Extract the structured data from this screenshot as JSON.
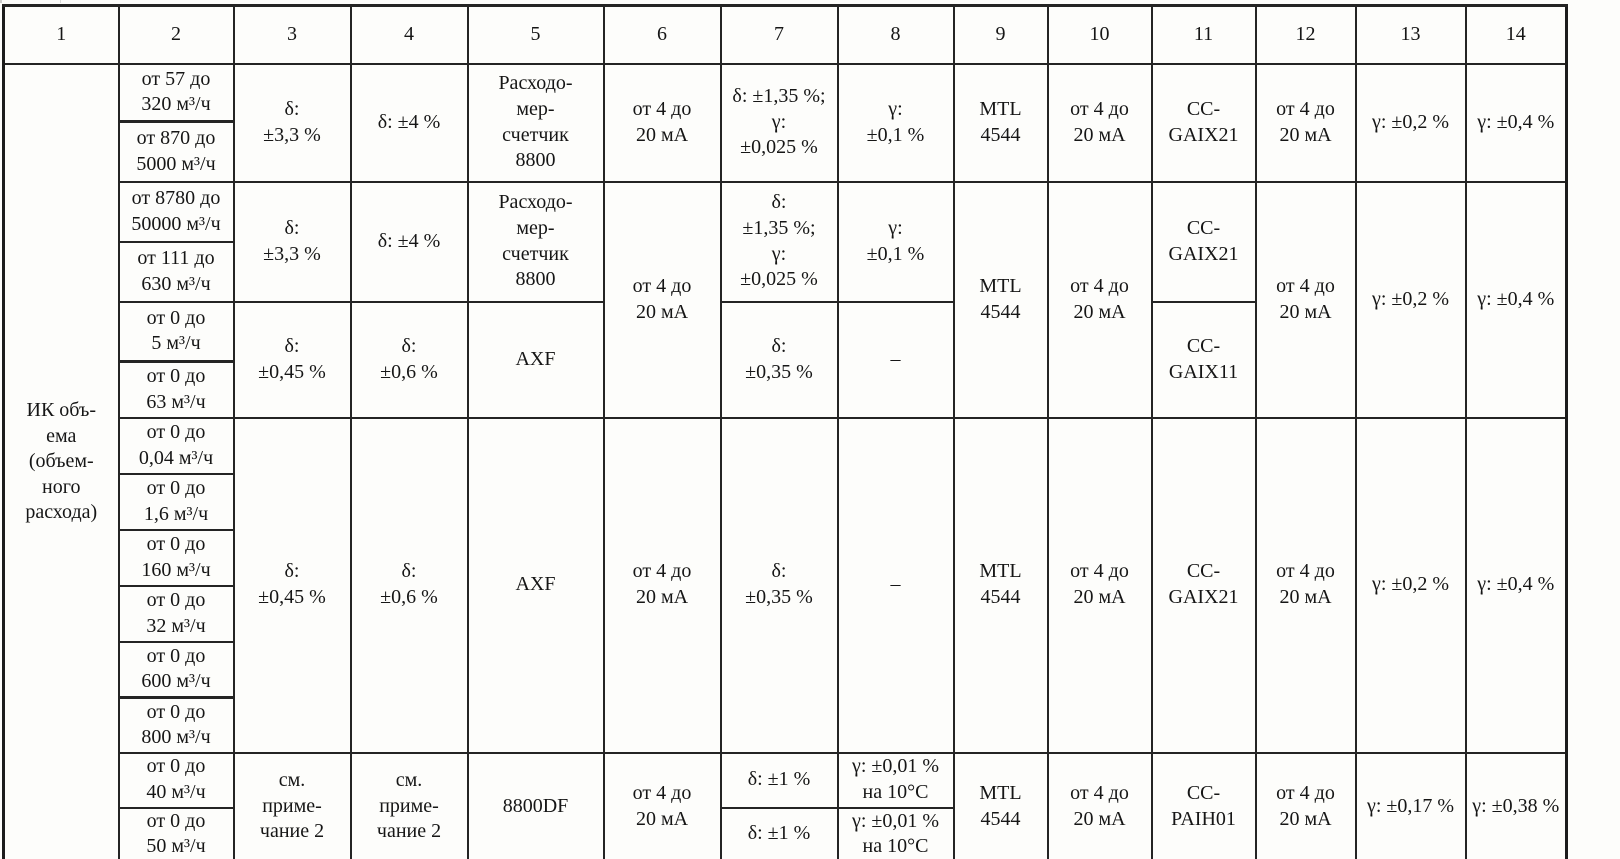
{
  "page": {
    "kind": "scanned-verification-table",
    "paper_color": "#fdfdfb",
    "line_color": "#242424",
    "text_color": "#161616"
  },
  "table": {
    "header": [
      "1",
      "2",
      "3",
      "4",
      "5",
      "6",
      "7",
      "8",
      "9",
      "10",
      "11",
      "12",
      "13",
      "14"
    ],
    "col1_label": "ИК объ-\nема\n(объем-\nного\nрасхода)",
    "rows": [
      {
        "cells": [
          {
            "c": 2,
            "t": "от 57 до\n320 м³/ч"
          },
          {
            "c": 3,
            "rs": 2,
            "t": "δ:\n±3,3 %"
          },
          {
            "c": 4,
            "rs": 2,
            "t": "δ: ±4 %"
          },
          {
            "c": 5,
            "rs": 2,
            "t": "Расходо-\nмер-\nсчетчик\n8800"
          },
          {
            "c": 6,
            "rs": 2,
            "t": "от 4 до\n20 мА"
          },
          {
            "c": 7,
            "rs": 2,
            "t": "δ: ±1,35 %;\nγ:\n±0,025 %"
          },
          {
            "c": 8,
            "rs": 2,
            "t": "γ:\n±0,1 %"
          },
          {
            "c": 9,
            "rs": 2,
            "t": "MTL\n4544"
          },
          {
            "c": 10,
            "rs": 2,
            "t": "от 4 до\n20 мА"
          },
          {
            "c": 11,
            "rs": 2,
            "t": "CC-\nGAIX21"
          },
          {
            "c": 12,
            "rs": 2,
            "t": "от 4 до\n20 мА"
          },
          {
            "c": 13,
            "rs": 2,
            "t": "γ: ±0,2 %"
          },
          {
            "c": 14,
            "rs": 2,
            "t": "γ: ±0,4 %"
          }
        ]
      },
      {
        "cells": [
          {
            "c": 2,
            "t": "от 870 до\n5000 м³/ч"
          }
        ]
      },
      {
        "cells": [
          {
            "c": 2,
            "t": "от 8780 до\n50000 м³/ч"
          },
          {
            "c": 3,
            "rs": 2,
            "t": "δ:\n±3,3 %"
          },
          {
            "c": 4,
            "rs": 2,
            "t": "δ: ±4 %"
          },
          {
            "c": 5,
            "rs": 2,
            "t": "Расходо-\nмер-\nсчетчик\n8800"
          },
          {
            "c": 6,
            "rs": 4,
            "t": "от 4 до\n20 мА"
          },
          {
            "c": 7,
            "rs": 2,
            "t": "δ:\n±1,35 %;\nγ:\n±0,025 %"
          },
          {
            "c": 8,
            "rs": 2,
            "t": "γ:\n±0,1 %"
          },
          {
            "c": 9,
            "rs": 4,
            "t": "MTL\n4544"
          },
          {
            "c": 10,
            "rs": 4,
            "t": "от 4 до\n20 мА"
          },
          {
            "c": 11,
            "rs": 2,
            "t": "CC-\nGAIX21"
          },
          {
            "c": 12,
            "rs": 4,
            "t": "от 4 до\n20 мА"
          },
          {
            "c": 13,
            "rs": 4,
            "t": "γ: ±0,2 %"
          },
          {
            "c": 14,
            "rs": 4,
            "t": "γ: ±0,4 %"
          }
        ]
      },
      {
        "cells": [
          {
            "c": 2,
            "t": "от 111 до\n630 м³/ч"
          }
        ]
      },
      {
        "cells": [
          {
            "c": 2,
            "t": "от 0 до\n5 м³/ч"
          },
          {
            "c": 3,
            "rs": 2,
            "t": "δ:\n±0,45 %"
          },
          {
            "c": 4,
            "rs": 2,
            "t": "δ:\n±0,6 %"
          },
          {
            "c": 5,
            "rs": 2,
            "t": "AXF"
          },
          {
            "c": 7,
            "rs": 2,
            "t": "δ:\n±0,35 %"
          },
          {
            "c": 8,
            "rs": 2,
            "t": "–"
          },
          {
            "c": 11,
            "rs": 2,
            "t": "CC-\nGAIX11"
          }
        ]
      },
      {
        "cells": [
          {
            "c": 2,
            "t": "от 0 до\n63 м³/ч"
          }
        ]
      },
      {
        "cells": [
          {
            "c": 2,
            "t": "от 0 до\n0,04 м³/ч"
          },
          {
            "c": 3,
            "rs": 6,
            "t": "δ:\n±0,45 %"
          },
          {
            "c": 4,
            "rs": 6,
            "t": "δ:\n±0,6 %"
          },
          {
            "c": 5,
            "rs": 6,
            "t": "AXF"
          },
          {
            "c": 6,
            "rs": 6,
            "t": "от 4 до\n20 мА"
          },
          {
            "c": 7,
            "rs": 6,
            "t": "δ:\n±0,35 %"
          },
          {
            "c": 8,
            "rs": 6,
            "t": "–"
          },
          {
            "c": 9,
            "rs": 6,
            "t": "MTL\n4544"
          },
          {
            "c": 10,
            "rs": 6,
            "t": "от 4 до\n20 мА"
          },
          {
            "c": 11,
            "rs": 6,
            "t": "CC-\nGAIX21"
          },
          {
            "c": 12,
            "rs": 6,
            "t": "от 4 до\n20 мА"
          },
          {
            "c": 13,
            "rs": 6,
            "t": "γ: ±0,2 %"
          },
          {
            "c": 14,
            "rs": 6,
            "t": "γ: ±0,4 %"
          }
        ]
      },
      {
        "cells": [
          {
            "c": 2,
            "t": "от 0 до\n1,6 м³/ч"
          }
        ]
      },
      {
        "cells": [
          {
            "c": 2,
            "t": "от 0 до\n160 м³/ч"
          }
        ]
      },
      {
        "cells": [
          {
            "c": 2,
            "t": "от 0 до\n32 м³/ч"
          }
        ]
      },
      {
        "cells": [
          {
            "c": 2,
            "t": "от 0 до\n600 м³/ч"
          }
        ]
      },
      {
        "cells": [
          {
            "c": 2,
            "t": "от 0 до\n800 м³/ч"
          }
        ]
      },
      {
        "cells": [
          {
            "c": 2,
            "t": "от 0 до\n40 м³/ч"
          },
          {
            "c": 3,
            "rs": 2,
            "t": "см.\nприме-\nчание 2"
          },
          {
            "c": 4,
            "rs": 2,
            "t": "см.\nприме-\nчание 2"
          },
          {
            "c": 5,
            "rs": 2,
            "t": "8800DF"
          },
          {
            "c": 6,
            "rs": 2,
            "t": "от 4 до\n20 мА"
          },
          {
            "c": 7,
            "t": "δ: ±1 %"
          },
          {
            "c": 8,
            "t": "γ: ±0,01 %\nна 10°C"
          },
          {
            "c": 9,
            "rs": 2,
            "t": "MTL\n4544"
          },
          {
            "c": 10,
            "rs": 2,
            "t": "от 4 до\n20 мА"
          },
          {
            "c": 11,
            "rs": 2,
            "t": "CC-\nPAIH01"
          },
          {
            "c": 12,
            "rs": 2,
            "t": "от 4 до\n20 мА"
          },
          {
            "c": 13,
            "rs": 2,
            "t": "γ: ±0,17 %"
          },
          {
            "c": 14,
            "rs": 2,
            "t": "γ: ±0,38 %"
          }
        ]
      },
      {
        "cells": [
          {
            "c": 2,
            "t": "от 0 до\n50 м³/ч"
          },
          {
            "c": 7,
            "t": "δ: ±1 %"
          },
          {
            "c": 8,
            "t": "γ: ±0,01 %\nна 10°C"
          }
        ]
      }
    ]
  }
}
